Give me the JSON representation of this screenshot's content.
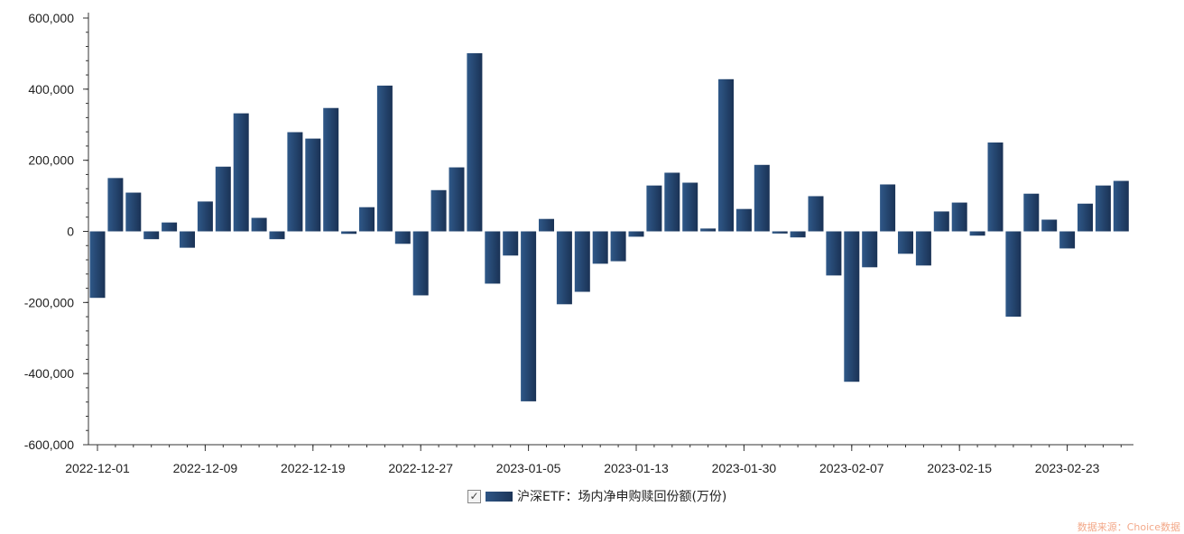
{
  "chart_data": {
    "type": "bar",
    "title": "",
    "xlabel": "",
    "ylabel": "",
    "ylim": [
      -600000,
      600000
    ],
    "y_ticks": [
      600000,
      400000,
      200000,
      0,
      -200000,
      -400000,
      -600000
    ],
    "y_tick_labels": [
      "600,000",
      "400,000",
      "200,000",
      "0",
      "-200,000",
      "-400,000",
      "-600,000"
    ],
    "x_ticks": [
      {
        "index": 0,
        "label": "2022-12-01"
      },
      {
        "index": 6,
        "label": "2022-12-09"
      },
      {
        "index": 12,
        "label": "2022-12-19"
      },
      {
        "index": 18,
        "label": "2022-12-27"
      },
      {
        "index": 24,
        "label": "2023-01-05"
      },
      {
        "index": 30,
        "label": "2023-01-13"
      },
      {
        "index": 36,
        "label": "2023-01-30"
      },
      {
        "index": 42,
        "label": "2023-02-07"
      },
      {
        "index": 48,
        "label": "2023-02-15"
      },
      {
        "index": 54,
        "label": "2023-02-23"
      }
    ],
    "series": [
      {
        "name": "沪深ETF：场内净申购赎回份额(万份)",
        "color": "#24436b",
        "values": [
          -187000,
          150000,
          109000,
          -22000,
          25000,
          -46000,
          84000,
          182000,
          332000,
          38000,
          -22000,
          279000,
          261000,
          347000,
          -7000,
          68000,
          410000,
          -35000,
          -180000,
          116000,
          180000,
          501000,
          -147000,
          -68000,
          -478000,
          35000,
          -205000,
          -170000,
          -91000,
          -84000,
          -15000,
          129000,
          165000,
          137000,
          8000,
          428000,
          63000,
          187000,
          -6000,
          -17000,
          99000,
          -124000,
          -423000,
          -101000,
          132000,
          -63000,
          -96000,
          56000,
          81000,
          -12000,
          250000,
          -240000,
          106000,
          33000,
          -48000,
          78000,
          129000,
          142000
        ]
      }
    ],
    "grid": false,
    "legend_position": "bottom-center"
  },
  "legend": {
    "checked": "✓"
  },
  "watermark": "数据来源：Choice数据"
}
